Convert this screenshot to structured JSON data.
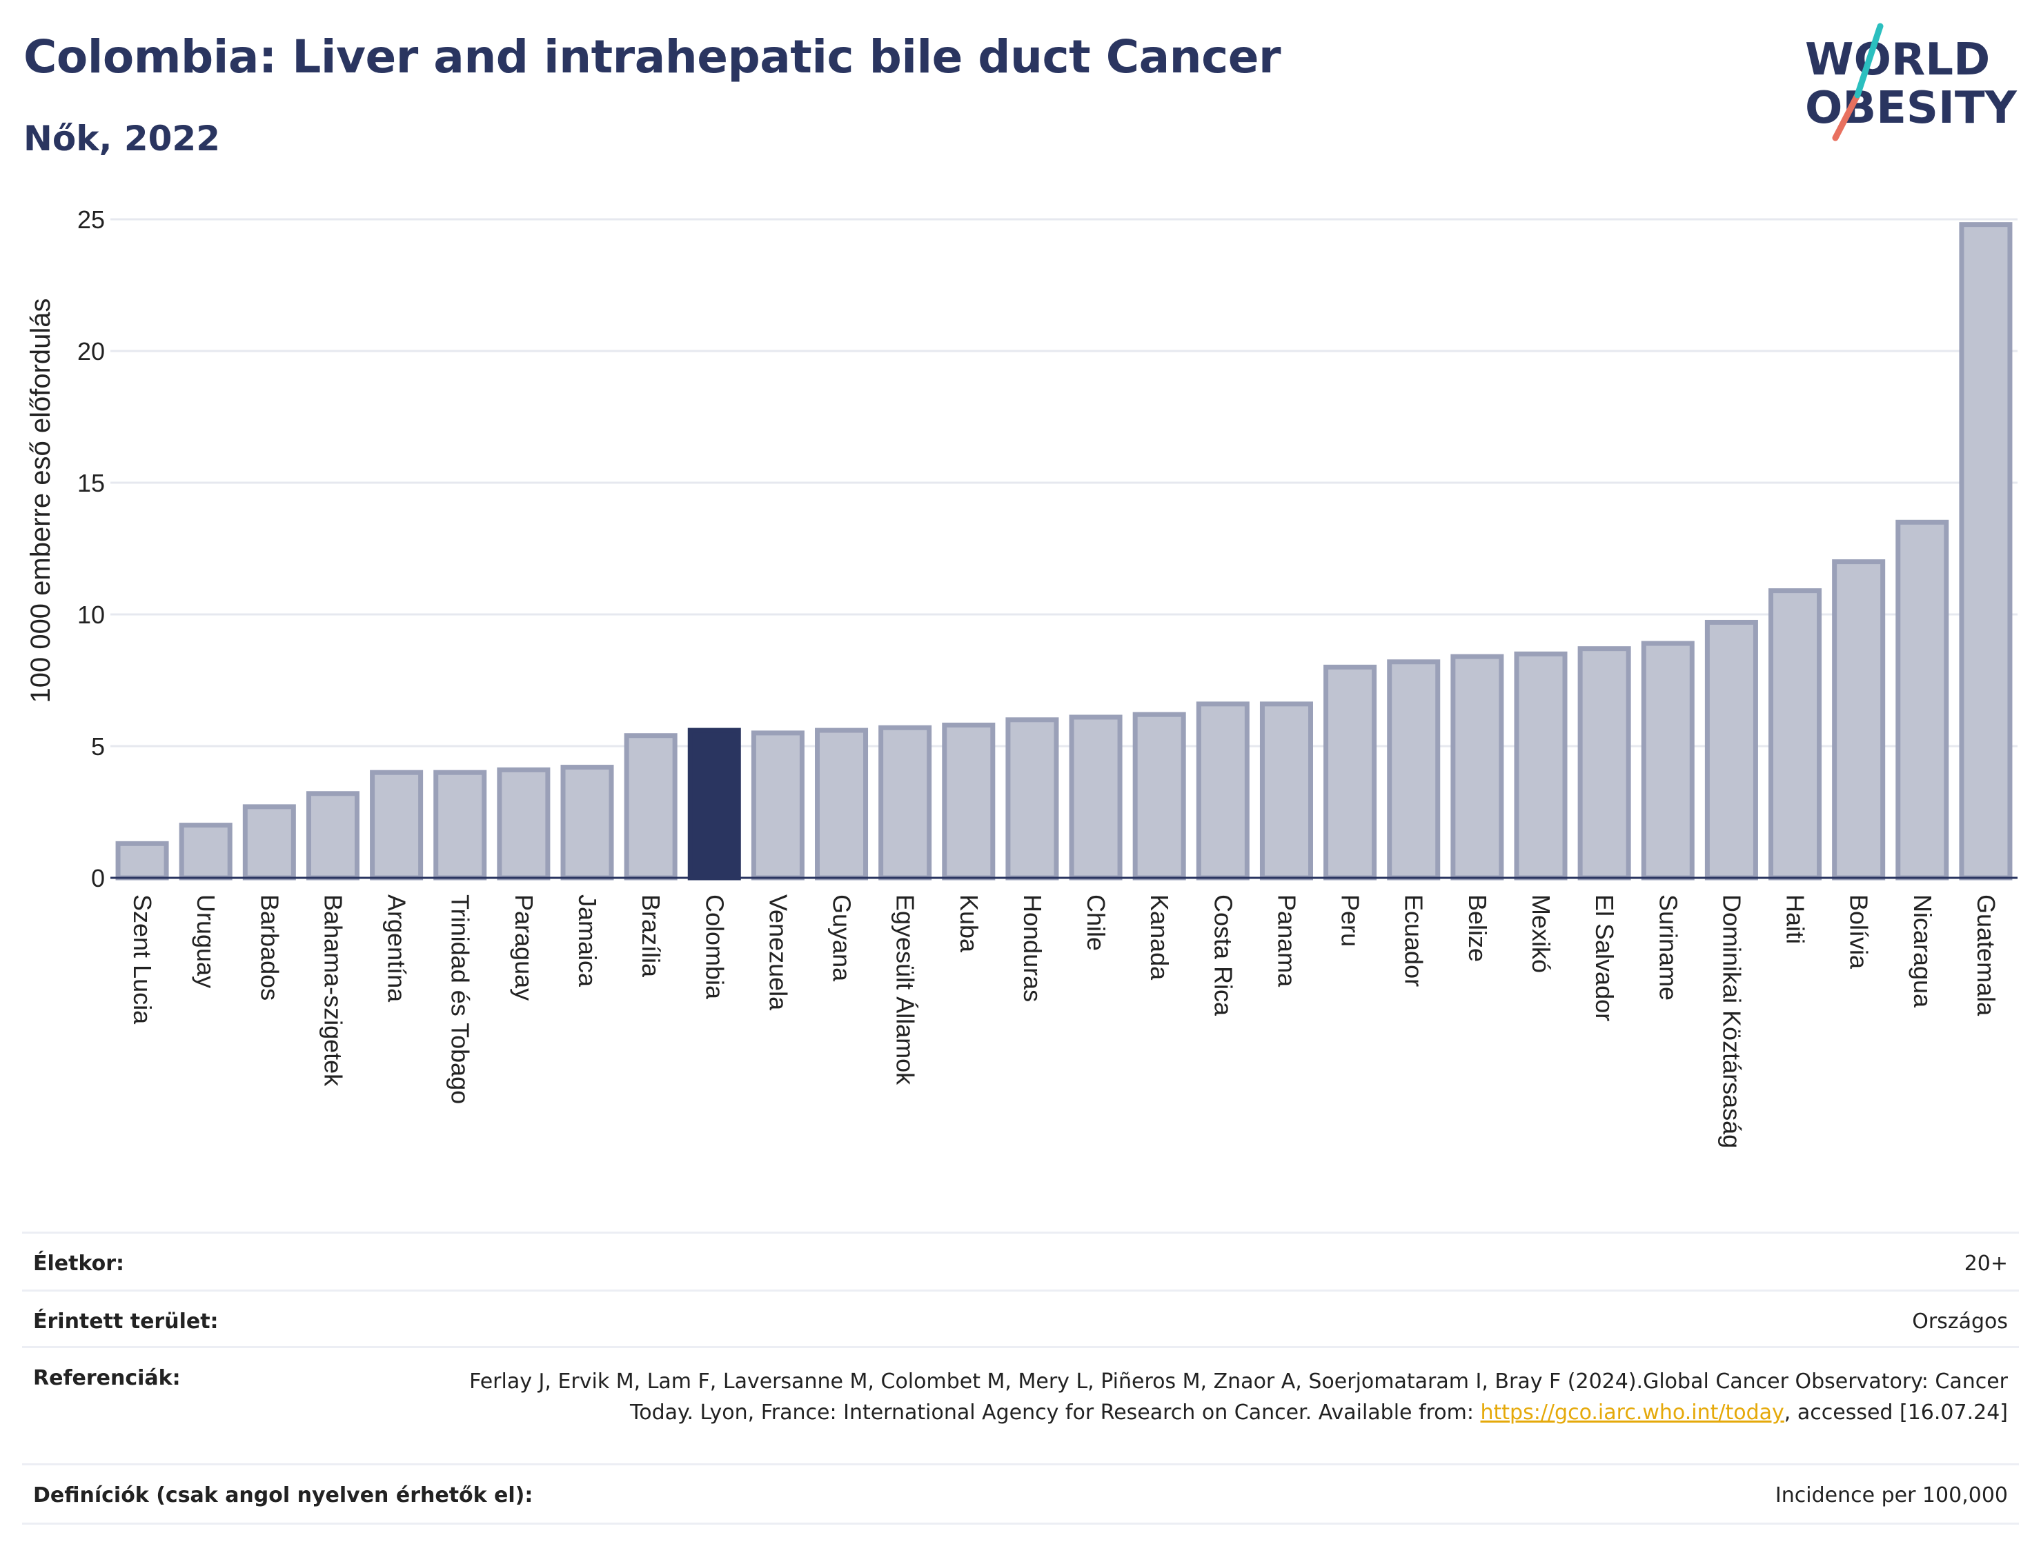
{
  "title": "Colombia: Liver and intrahepatic bile duct Cancer",
  "subtitle": "Nők, 2022",
  "logo": {
    "line1": "WORLD",
    "line2": "OBESITY",
    "accent_colors": [
      "#2bbfbf",
      "#e8705f"
    ]
  },
  "chart_data": {
    "type": "bar",
    "ylabel": "100 000 emberre eső előfordulás",
    "xlabel": "",
    "ylim": [
      0,
      25
    ],
    "yticks": [
      0,
      5,
      10,
      15,
      20,
      25
    ],
    "grid": true,
    "highlight": "Colombia",
    "colors": {
      "bar": "#bfc3d1",
      "bar_edge": "#9aa0b8",
      "highlight": "#2a3560"
    },
    "categories": [
      "Szent Lucia",
      "Uruguay",
      "Barbados",
      "Bahama-szigetek",
      "Argentína",
      "Trinidad és Tobago",
      "Paraguay",
      "Jamaica",
      "Brazília",
      "Colombia",
      "Venezuela",
      "Guyana",
      "Egyesült Államok",
      "Kuba",
      "Honduras",
      "Chile",
      "Kanada",
      "Costa Rica",
      "Panama",
      "Peru",
      "Ecuador",
      "Belize",
      "Mexikó",
      "El Salvador",
      "Suriname",
      "Dominikai Köztársaság",
      "Haiti",
      "Bolívia",
      "Nicaragua",
      "Guatemala"
    ],
    "values": [
      1.3,
      2.0,
      2.7,
      3.2,
      4.0,
      4.0,
      4.1,
      4.2,
      5.4,
      5.6,
      5.5,
      5.6,
      5.7,
      5.8,
      6.0,
      6.1,
      6.2,
      6.6,
      6.6,
      8.0,
      8.2,
      8.4,
      8.5,
      8.7,
      8.9,
      9.7,
      10.9,
      12.0,
      13.5,
      24.8
    ]
  },
  "meta": [
    {
      "label": "Életkor:",
      "value": "20+"
    },
    {
      "label": "Érintett terület:",
      "value": "Országos"
    },
    {
      "label": "Referenciák:",
      "value_before": "Ferlay J, Ervik M, Lam F, Laversanne M, Colombet M, Mery L, Piñeros M, Znaor A, Soerjomataram I, Bray F (2024).Global Cancer Observatory: Cancer Today. Lyon, France: International Agency for Research on Cancer. Available from: ",
      "link": "https://gco.iarc.who.int/today",
      "value_after": ", accessed [16.07.24]"
    },
    {
      "label": "Definíciók (csak angol nyelven érhetők el):",
      "value": "Incidence per 100,000"
    }
  ]
}
